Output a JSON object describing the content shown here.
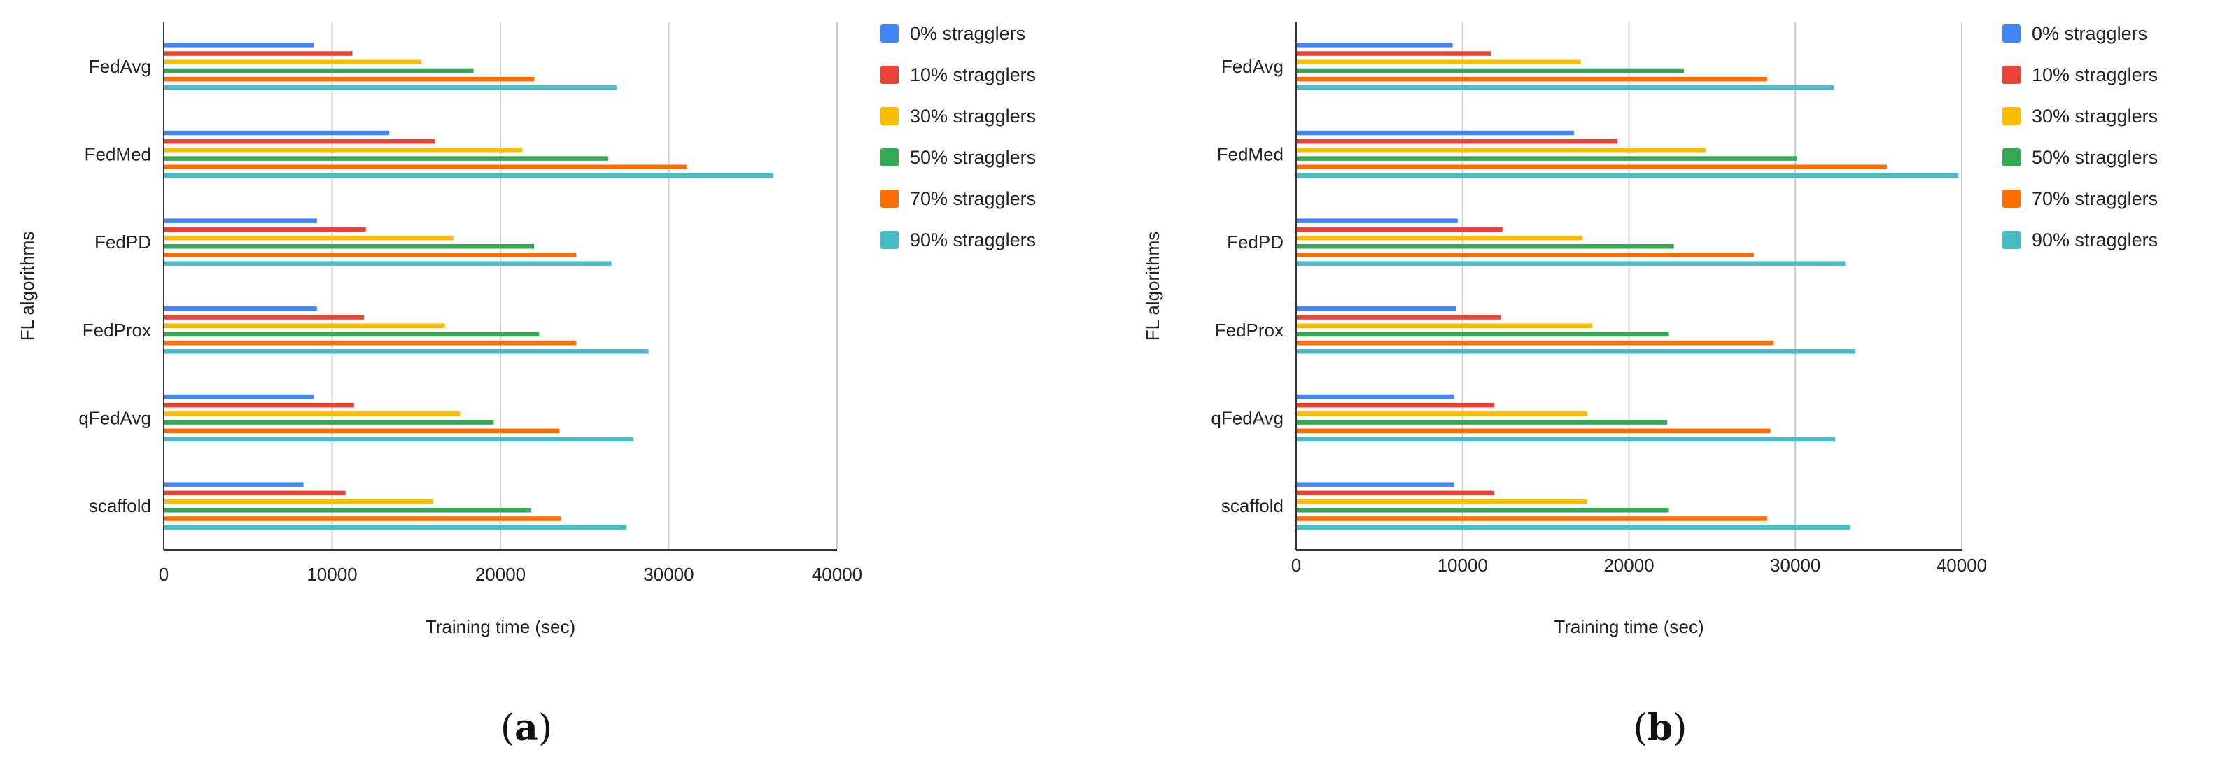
{
  "colors": [
    "#4285F4",
    "#EA4335",
    "#FBBC04",
    "#34A853",
    "#FF6D01",
    "#46BDC6"
  ],
  "chart_data": [
    {
      "type": "bar",
      "orientation": "horizontal",
      "panel_label": "(a)",
      "panel_letter": "a",
      "xlabel": "Training time (sec)",
      "ylabel": "FL algorithms",
      "xlim": [
        0,
        40000
      ],
      "xticks": [
        "0",
        "10000",
        "20000",
        "30000",
        "40000"
      ],
      "grid": true,
      "legend_position": "right",
      "categories": [
        "FedAvg",
        "FedMed",
        "FedPD",
        "FedProx",
        "qFedAvg",
        "scaffold"
      ],
      "series": [
        {
          "name": "0% stragglers",
          "values": [
            8900,
            13400,
            9100,
            9100,
            8900,
            8300
          ]
        },
        {
          "name": "10% stragglers",
          "values": [
            11200,
            16100,
            12000,
            11900,
            11300,
            10800
          ]
        },
        {
          "name": "30% stragglers",
          "values": [
            15300,
            21300,
            17200,
            16700,
            17600,
            16000
          ]
        },
        {
          "name": "50% stragglers",
          "values": [
            18400,
            26400,
            22000,
            22300,
            19600,
            21800
          ]
        },
        {
          "name": "70% stragglers",
          "values": [
            22000,
            31100,
            24500,
            24500,
            23500,
            23600
          ]
        },
        {
          "name": "90% stragglers",
          "values": [
            26900,
            36200,
            26600,
            28800,
            27900,
            27500
          ]
        }
      ]
    },
    {
      "type": "bar",
      "orientation": "horizontal",
      "panel_label": "(b)",
      "panel_letter": "b",
      "xlabel": "Training time (sec)",
      "ylabel": "FL algorithms",
      "xlim": [
        0,
        40000
      ],
      "xticks": [
        "0",
        "10000",
        "20000",
        "30000",
        "40000"
      ],
      "grid": true,
      "legend_position": "right",
      "categories": [
        "FedAvg",
        "FedMed",
        "FedPD",
        "FedProx",
        "qFedAvg",
        "scaffold"
      ],
      "series": [
        {
          "name": "0% stragglers",
          "values": [
            9400,
            16700,
            9700,
            9600,
            9500,
            9500
          ]
        },
        {
          "name": "10% stragglers",
          "values": [
            11700,
            19300,
            12400,
            12300,
            11900,
            11900
          ]
        },
        {
          "name": "30% stragglers",
          "values": [
            17100,
            24600,
            17200,
            17800,
            17500,
            17500
          ]
        },
        {
          "name": "50% stragglers",
          "values": [
            23300,
            30100,
            22700,
            22400,
            22300,
            22400
          ]
        },
        {
          "name": "70% stragglers",
          "values": [
            28300,
            35500,
            27500,
            28700,
            28500,
            28300
          ]
        },
        {
          "name": "90% stragglers",
          "values": [
            32300,
            39800,
            33000,
            33600,
            32400,
            33300
          ]
        }
      ]
    }
  ]
}
